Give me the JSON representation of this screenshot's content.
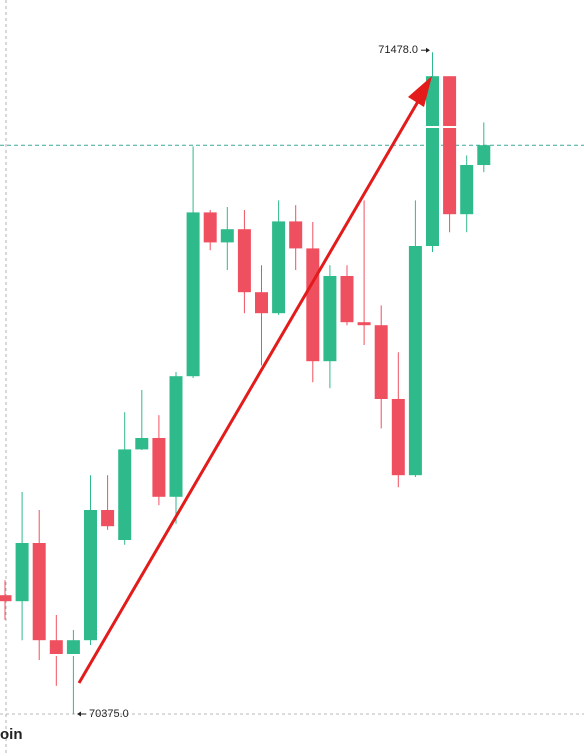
{
  "chart_data": {
    "type": "candlestick",
    "up_color": "#2fba8b",
    "down_color": "#ef5060",
    "ylim": [
      70305,
      71565
    ],
    "open": [
      70573,
      70563,
      70660,
      70498,
      70472,
      70498,
      70715,
      70665,
      70816,
      70835,
      70737,
      70938,
      71211,
      71161,
      71183,
      71078,
      71043,
      71196,
      71151,
      70963,
      71105,
      71028,
      71023,
      70900,
      70773,
      71155,
      71438,
      71208,
      71290
    ],
    "high": [
      70598,
      70745,
      70715,
      70540,
      70515,
      70773,
      70773,
      70878,
      70915,
      70873,
      70945,
      71321,
      71215,
      71220,
      71215,
      71123,
      71231,
      71223,
      71195,
      71123,
      71123,
      71231,
      71056,
      70978,
      71231,
      71478,
      71438,
      71306,
      71361
    ],
    "low": [
      70532,
      70498,
      70465,
      70422,
      70375,
      70490,
      70682,
      70657,
      70815,
      70723,
      70692,
      70935,
      71148,
      71115,
      71043,
      70956,
      71040,
      71115,
      70928,
      70918,
      71023,
      70990,
      70851,
      70753,
      70770,
      71145,
      71178,
      71178,
      71278
    ],
    "close": [
      70563,
      70660,
      70498,
      70472,
      70498,
      70715,
      70688,
      70816,
      70835,
      70737,
      70938,
      71211,
      71161,
      71183,
      71078,
      71043,
      71196,
      71151,
      70963,
      71105,
      71028,
      71023,
      70900,
      70773,
      71155,
      71438,
      71208,
      71290,
      71323
    ],
    "high_label": {
      "value": 71478,
      "label": "71478.0"
    },
    "low_label": {
      "value": 70375,
      "label": "70375.0"
    },
    "footer_text": "oin"
  }
}
